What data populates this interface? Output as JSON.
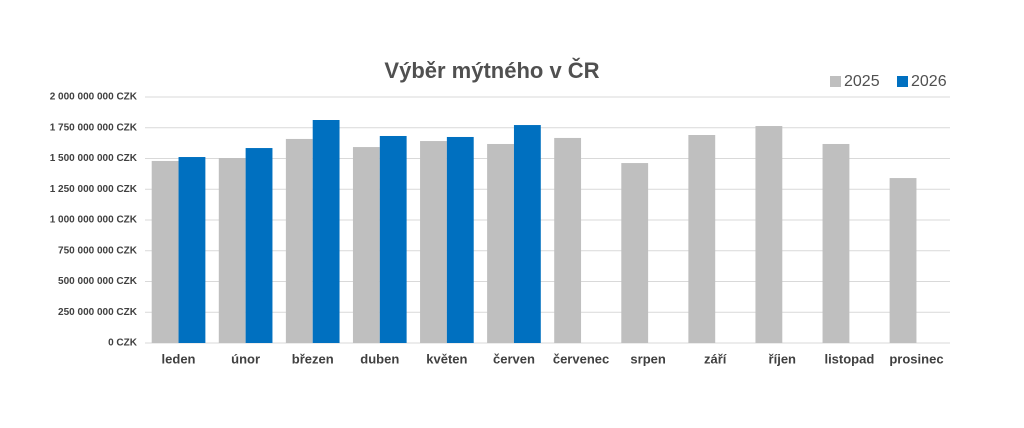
{
  "chart_data": {
    "type": "bar",
    "title": "Výběr mýtného v ČR",
    "categories": [
      "leden",
      "únor",
      "březen",
      "duben",
      "květen",
      "červen",
      "červenec",
      "srpen",
      "září",
      "říjen",
      "listopad",
      "prosinec"
    ],
    "series": [
      {
        "name": "2025",
        "color": "#bfbfbf",
        "values": [
          1480000000,
          1504000000,
          1659000000,
          1593000000,
          1642000000,
          1618000000,
          1667000000,
          1463000000,
          1691000000,
          1764000000,
          1618000000,
          1341000000
        ]
      },
      {
        "name": "2026",
        "color": "#0070c0",
        "values": [
          1512000000,
          1585000000,
          1813000000,
          1683000000,
          1675000000,
          1772000000,
          null,
          null,
          null,
          null,
          null,
          null
        ]
      }
    ],
    "ylim": [
      0,
      2000000000
    ],
    "yticks": [
      {
        "value": 0,
        "label": "0 CZK"
      },
      {
        "value": 250000000,
        "label": "250 000 000 CZK"
      },
      {
        "value": 500000000,
        "label": "500 000 000 CZK"
      },
      {
        "value": 750000000,
        "label": "750 000 000 CZK"
      },
      {
        "value": 1000000000,
        "label": "1 000 000 000 CZK"
      },
      {
        "value": 1250000000,
        "label": "1 250 000 000 CZK"
      },
      {
        "value": 1500000000,
        "label": "1 500 000 000 CZK"
      },
      {
        "value": 1750000000,
        "label": "1 750 000 000 CZK"
      },
      {
        "value": 2000000000,
        "label": "2 000 000 000 CZK"
      }
    ],
    "grid": true,
    "legend": "top-right"
  }
}
